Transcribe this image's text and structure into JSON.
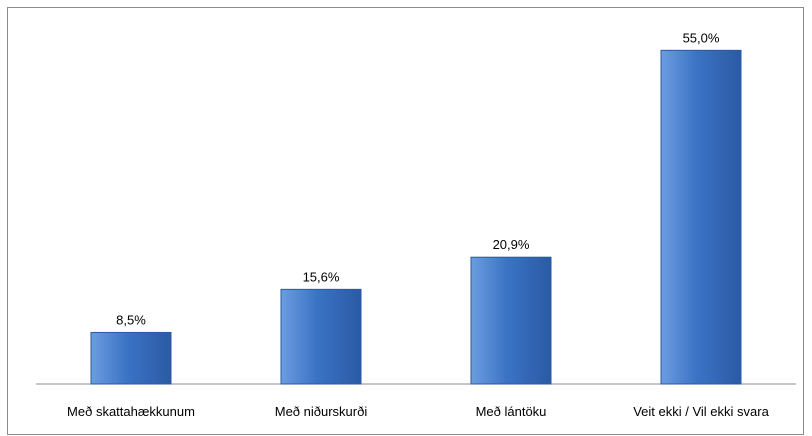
{
  "chart_data": {
    "type": "bar",
    "categories": [
      "Með skattahækkunum",
      "Með niðurskurði",
      "Með lántöku",
      "Veit ekki / Vil ekki svara"
    ],
    "values": [
      8.5,
      15.6,
      20.9,
      55.0
    ],
    "data_labels": [
      "8,5%",
      "15,6%",
      "20,9%",
      "55,0%"
    ],
    "title": "",
    "xlabel": "",
    "ylabel": "",
    "ylim": [
      0,
      60
    ],
    "grid": false,
    "legend": "none",
    "colors": {
      "bar_top": "#6b9de0",
      "bar_mid": "#3b73c4",
      "bar_bottom": "#2a5aa6",
      "bar_edge": "#2b5a9e",
      "axis": "#8c8c8c",
      "frame": "#8c8c8c"
    }
  }
}
